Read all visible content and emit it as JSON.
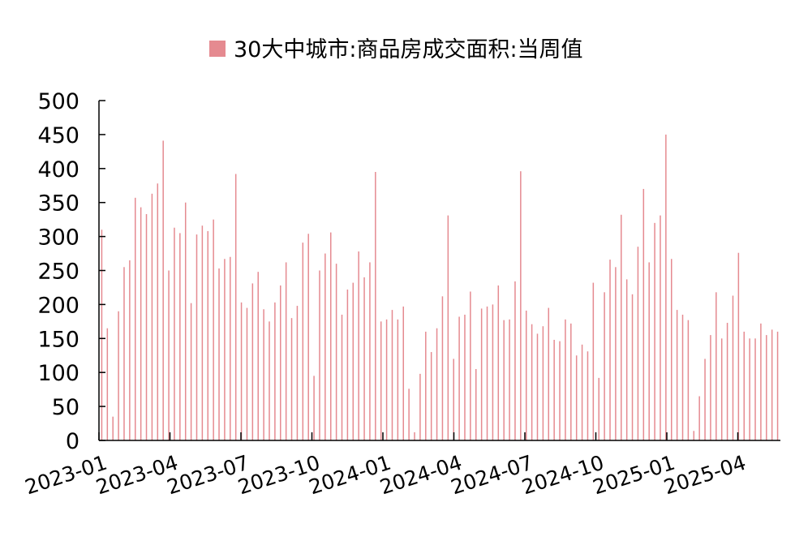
{
  "chart_data": {
    "type": "bar",
    "legend": "30大中城市:商品房成交面积:当周值",
    "legend_placement": "top-center",
    "grid": false,
    "ylim": [
      0,
      500
    ],
    "yticks": [
      "0",
      "50",
      "100",
      "150",
      "200",
      "250",
      "300",
      "350",
      "400",
      "450",
      "500"
    ],
    "xticks": [
      "2023-01",
      "2023-04",
      "2023-07",
      "2023-10",
      "2024-01",
      "2024-04",
      "2024-07",
      "2024-10",
      "2025-01",
      "2025-04"
    ],
    "series": [
      {
        "name": "30大中城市:商品房成交面积:当周值",
        "color": "#E58A90",
        "values": [
          310,
          165,
          35,
          190,
          255,
          265,
          357,
          343,
          333,
          363,
          378,
          441,
          250,
          313,
          305,
          350,
          202,
          303,
          316,
          308,
          325,
          253,
          267,
          270,
          392,
          203,
          195,
          231,
          248,
          193,
          175,
          203,
          228,
          262,
          180,
          198,
          291,
          304,
          95,
          250,
          275,
          306,
          260,
          185,
          222,
          232,
          278,
          240,
          262,
          395,
          175,
          178,
          192,
          178,
          197,
          76,
          12,
          98,
          160,
          130,
          165,
          212,
          331,
          120,
          182,
          185,
          219,
          105,
          194,
          197,
          200,
          228,
          177,
          178,
          234,
          396,
          191,
          171,
          157,
          168,
          195,
          148,
          146,
          178,
          172,
          125,
          141,
          131,
          232,
          92,
          218,
          266,
          255,
          332,
          237,
          215,
          285,
          370,
          262,
          320,
          331,
          450,
          267,
          192,
          185,
          177,
          14,
          65,
          120,
          155,
          218,
          150,
          173,
          213,
          276,
          160,
          150,
          150,
          172,
          155,
          163,
          160
        ]
      }
    ]
  }
}
